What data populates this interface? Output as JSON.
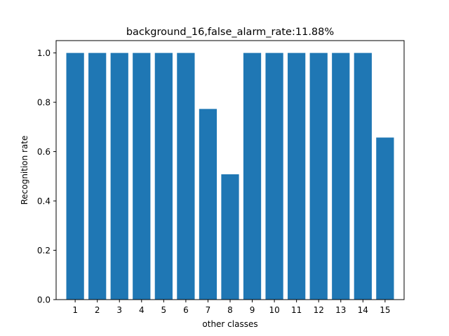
{
  "chart_data": {
    "type": "bar",
    "title": "background_16,false_alarm_rate:11.88%",
    "xlabel": "other classes",
    "ylabel": "Recognition rate",
    "categories": [
      "1",
      "2",
      "3",
      "4",
      "5",
      "6",
      "7",
      "8",
      "9",
      "10",
      "11",
      "12",
      "13",
      "14",
      "15"
    ],
    "values": [
      1.0,
      1.0,
      1.0,
      1.0,
      1.0,
      1.0,
      0.773,
      0.508,
      1.0,
      1.0,
      1.0,
      1.0,
      1.0,
      1.0,
      0.657
    ],
    "ylim": [
      0,
      1.05
    ],
    "yticks": [
      "0.0",
      "0.2",
      "0.4",
      "0.6",
      "0.8",
      "1.0"
    ],
    "bar_color": "#1f77b4",
    "grid": false,
    "legend": "none"
  }
}
